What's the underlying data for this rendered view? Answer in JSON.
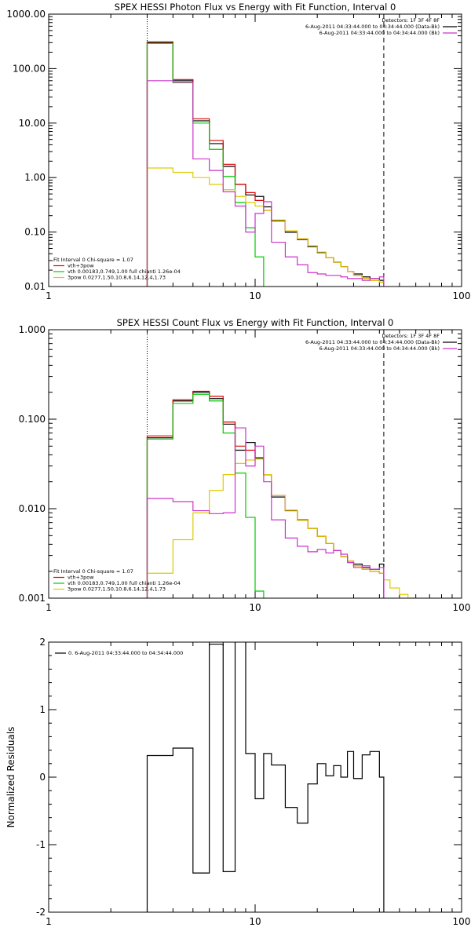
{
  "chart_data": [
    {
      "type": "line",
      "title": "SPEX HESSI Photon Flux vs Energy with Fit Function, Interval 0",
      "xlabel": "",
      "ylabel": "",
      "xscale": "log",
      "yscale": "log",
      "xlim": [
        1,
        100
      ],
      "ylim": [
        0.01,
        1000
      ],
      "xticks": [
        {
          "v": 1,
          "label": "1"
        },
        {
          "v": 10,
          "label": "10"
        },
        {
          "v": 100,
          "label": "100"
        }
      ],
      "yticks": [
        {
          "v": 0.01,
          "label": "0.01"
        },
        {
          "v": 0.1,
          "label": "0.10"
        },
        {
          "v": 1,
          "label": "1.00"
        },
        {
          "v": 10,
          "label": "10.00"
        },
        {
          "v": 100,
          "label": "100.00"
        },
        {
          "v": 1000,
          "label": "1000.00"
        }
      ],
      "vlines": [
        {
          "x": 3.0,
          "style": "dotted"
        },
        {
          "x": 42.0,
          "style": "dashed"
        }
      ],
      "legend_top_right": {
        "position": "top-right",
        "title": "Detectors: 1F 3F 4F 8F",
        "entries": [
          {
            "text": "6-Aug-2011 04:33:44.000 to 04:34:44.000 (Data-Bk)",
            "color": "#000000"
          },
          {
            "text": "6-Aug-2011 04:33:44.000 to 04:34:44.000 (Bk)",
            "color": "#cc33cc"
          }
        ]
      },
      "legend_bottom_left": {
        "position": "bottom-left",
        "title": "Fit Interval 0   Chi-square = 1.07",
        "entries": [
          {
            "text": "vth+3pow",
            "color": "#dd0000"
          },
          {
            "text": "vth 0.00183,0.749,1.00  full chianti 1.26e-04",
            "color": "#00cc00"
          },
          {
            "text": "3pow 0.0277,1.50,10.8,6.14,12.4,1.73",
            "color": "#ddcc00"
          }
        ]
      },
      "edges": [
        3,
        4,
        5,
        6,
        7,
        8,
        9,
        10,
        11,
        12,
        14,
        16,
        18,
        20,
        22,
        24,
        26,
        28,
        30,
        33,
        36,
        40,
        42
      ],
      "series": [
        {
          "name": "Data-Bk",
          "color": "#000000",
          "values": [
            300,
            60,
            11,
            4.2,
            1.6,
            0.75,
            0.48,
            0.45,
            0.29,
            0.16,
            0.099,
            0.073,
            0.054,
            0.042,
            0.034,
            0.028,
            0.023,
            0.019,
            0.017,
            0.015,
            0.014,
            0.013
          ]
        },
        {
          "name": "vth+3pow",
          "color": "#dd0000",
          "values": [
            310,
            63,
            12,
            4.8,
            1.75,
            0.75,
            0.53,
            0.38,
            0.25,
            0.165,
            0.105,
            0.075,
            0.056,
            0.043,
            0.034,
            0.028,
            0.023,
            0.019,
            0.016,
            0.014,
            0.013,
            0.012
          ]
        },
        {
          "name": "vth",
          "color": "#00cc00",
          "values": [
            290,
            55,
            10,
            3.3,
            1.05,
            0.35,
            0.12,
            0.035,
            0.008
          ]
        },
        {
          "name": "3pow",
          "color": "#ddcc00",
          "values": [
            1.5,
            1.25,
            1.0,
            0.75,
            0.6,
            0.45,
            0.35,
            0.3,
            0.25,
            0.165,
            0.105,
            0.075,
            0.056,
            0.043,
            0.034,
            0.028,
            0.023,
            0.019,
            0.016,
            0.014,
            0.013,
            0.012
          ]
        },
        {
          "name": "Bk",
          "color": "#cc33cc",
          "values": [
            60,
            56,
            2.2,
            1.35,
            0.55,
            0.3,
            0.1,
            0.22,
            0.36,
            0.065,
            0.035,
            0.025,
            0.018,
            0.017,
            0.016,
            0.016,
            0.015,
            0.014,
            0.014,
            0.013,
            0.014,
            0.015
          ]
        }
      ]
    },
    {
      "type": "line",
      "title": "SPEX HESSI Count Flux vs Energy with Fit Function, Interval 0",
      "xlabel": "",
      "ylabel": "",
      "xscale": "log",
      "yscale": "log",
      "xlim": [
        1,
        100
      ],
      "ylim": [
        0.001,
        1
      ],
      "xticks": [
        {
          "v": 1,
          "label": "1"
        },
        {
          "v": 10,
          "label": "10"
        },
        {
          "v": 100,
          "label": "100"
        }
      ],
      "yticks": [
        {
          "v": 0.001,
          "label": "0.001"
        },
        {
          "v": 0.01,
          "label": "0.010"
        },
        {
          "v": 0.1,
          "label": "0.100"
        },
        {
          "v": 1,
          "label": "1.000"
        }
      ],
      "vlines": [
        {
          "x": 3.0,
          "style": "dotted"
        },
        {
          "x": 42.0,
          "style": "dashed"
        }
      ],
      "legend_top_right": {
        "position": "top-right",
        "title": "Detectors: 1F 3F 4F 8F",
        "entries": [
          {
            "text": "6-Aug-2011 04:33:44.000 to 04:34:44.000 (Data-Bk)",
            "color": "#000000"
          },
          {
            "text": "6-Aug-2011 04:33:44.000 to 04:34:44.000 (Bk)",
            "color": "#cc33cc"
          }
        ]
      },
      "legend_bottom_left": {
        "position": "bottom-left",
        "title": "Fit Interval 0   Chi-square = 1.07",
        "entries": [
          {
            "text": "vth+3pow",
            "color": "#dd0000"
          },
          {
            "text": "vth 0.00183,0.749,1.00  full chianti 1.26e-04",
            "color": "#00cc00"
          },
          {
            "text": "3pow 0.0277,1.50,10.8,6.14,12.4,1.73",
            "color": "#ddcc00"
          }
        ]
      },
      "edges": [
        3,
        4,
        5,
        6,
        7,
        8,
        9,
        10,
        11,
        12,
        14,
        16,
        18,
        20,
        22,
        24,
        26,
        28,
        30,
        33,
        36,
        40,
        42,
        45,
        50,
        55,
        60,
        65
      ],
      "series": [
        {
          "name": "Data-Bk",
          "color": "#000000",
          "values": [
            0.062,
            0.16,
            0.2,
            0.17,
            0.088,
            0.045,
            0.055,
            0.037,
            0.024,
            0.0135,
            0.0095,
            0.0075,
            0.006,
            0.0049,
            0.0041,
            0.0034,
            0.0029,
            0.0026,
            0.0024,
            0.0022,
            0.0021,
            0.0024
          ]
        },
        {
          "name": "vth+3pow",
          "color": "#dd0000",
          "values": [
            0.065,
            0.165,
            0.205,
            0.18,
            0.093,
            0.05,
            0.045,
            0.036,
            0.024,
            0.014,
            0.0096,
            0.0074,
            0.006,
            0.0049,
            0.0041,
            0.0034,
            0.0029,
            0.0026,
            0.0023,
            0.0021,
            0.002,
            0.0019
          ]
        },
        {
          "name": "vth",
          "color": "#00cc00",
          "values": [
            0.06,
            0.15,
            0.19,
            0.16,
            0.07,
            0.025,
            0.008,
            0.0012
          ]
        },
        {
          "name": "3pow",
          "color": "#ddcc00",
          "values": [
            0.0019,
            0.0045,
            0.009,
            0.016,
            0.024,
            0.032,
            0.035,
            0.036,
            0.024,
            0.014,
            0.0096,
            0.0074,
            0.006,
            0.0049,
            0.0041,
            0.0034,
            0.0029,
            0.0026,
            0.0023,
            0.0021,
            0.002,
            0.0019,
            0.0016,
            0.0013,
            0.0011,
            0.001,
            0.0009
          ]
        },
        {
          "name": "Bk",
          "color": "#cc33cc",
          "values": [
            0.013,
            0.012,
            0.0095,
            0.0088,
            0.009,
            0.08,
            0.03,
            0.05,
            0.02,
            0.0075,
            0.0047,
            0.0038,
            0.0033,
            0.0035,
            0.0032,
            0.0034,
            0.0031,
            0.0025,
            0.0022,
            0.0023,
            0.0021,
            0.0022
          ]
        }
      ]
    },
    {
      "type": "line",
      "title": "",
      "xlabel": "",
      "ylabel": "Normalized Residuals",
      "xscale": "log",
      "yscale": "linear",
      "xlim": [
        1,
        100
      ],
      "ylim": [
        -2,
        2
      ],
      "xticks": [
        {
          "v": 1,
          "label": "1"
        },
        {
          "v": 10,
          "label": "10"
        },
        {
          "v": 100,
          "label": "100"
        }
      ],
      "yticks": [
        {
          "v": -2,
          "label": "-2"
        },
        {
          "v": -1,
          "label": "-1"
        },
        {
          "v": 0,
          "label": "0"
        },
        {
          "v": 1,
          "label": "1"
        },
        {
          "v": 2,
          "label": "2"
        }
      ],
      "legend_top_left": {
        "position": "top-left",
        "entries": [
          {
            "text": "0. 6-Aug-2011 04:33:44.000 to 04:34:44.000",
            "color": "#000000"
          }
        ]
      },
      "edges": [
        3,
        4,
        5,
        6,
        7,
        8,
        9,
        10,
        11,
        12,
        14,
        16,
        18,
        20,
        22,
        24,
        26,
        28,
        30,
        33,
        36,
        40,
        42
      ],
      "series": [
        {
          "name": "",
          "color": "#000000",
          "values": [
            0.32,
            0.43,
            -1.42,
            1.97,
            -1.4,
            2.05,
            0.35,
            -0.32,
            0.35,
            0.18,
            -0.45,
            -0.68,
            -0.1,
            0.2,
            0.02,
            0.17,
            0.0,
            0.38,
            -0.02,
            0.33,
            0.38,
            0.0
          ]
        }
      ]
    }
  ]
}
